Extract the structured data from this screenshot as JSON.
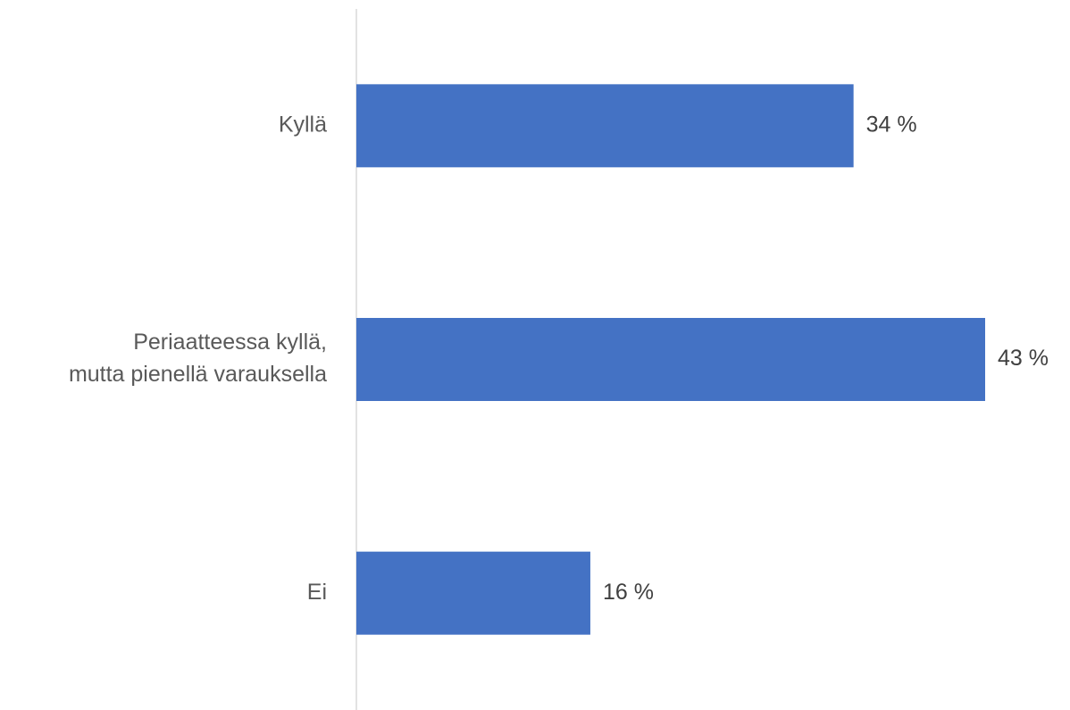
{
  "chart_data": {
    "type": "bar",
    "orientation": "horizontal",
    "categories": [
      [
        "Kyllä"
      ],
      [
        "Periaatteessa kyllä,",
        "mutta pienellä varauksella"
      ],
      [
        "Ei"
      ]
    ],
    "values": [
      34,
      43,
      16
    ],
    "value_labels": [
      "34 %",
      "43 %",
      "16 %"
    ],
    "unit": "%",
    "xlim": [
      0,
      43
    ],
    "grid": false,
    "legend": "none",
    "bar_color": "#4472C4",
    "axis_color": "#D9D9D9",
    "label_color": "#595959"
  }
}
